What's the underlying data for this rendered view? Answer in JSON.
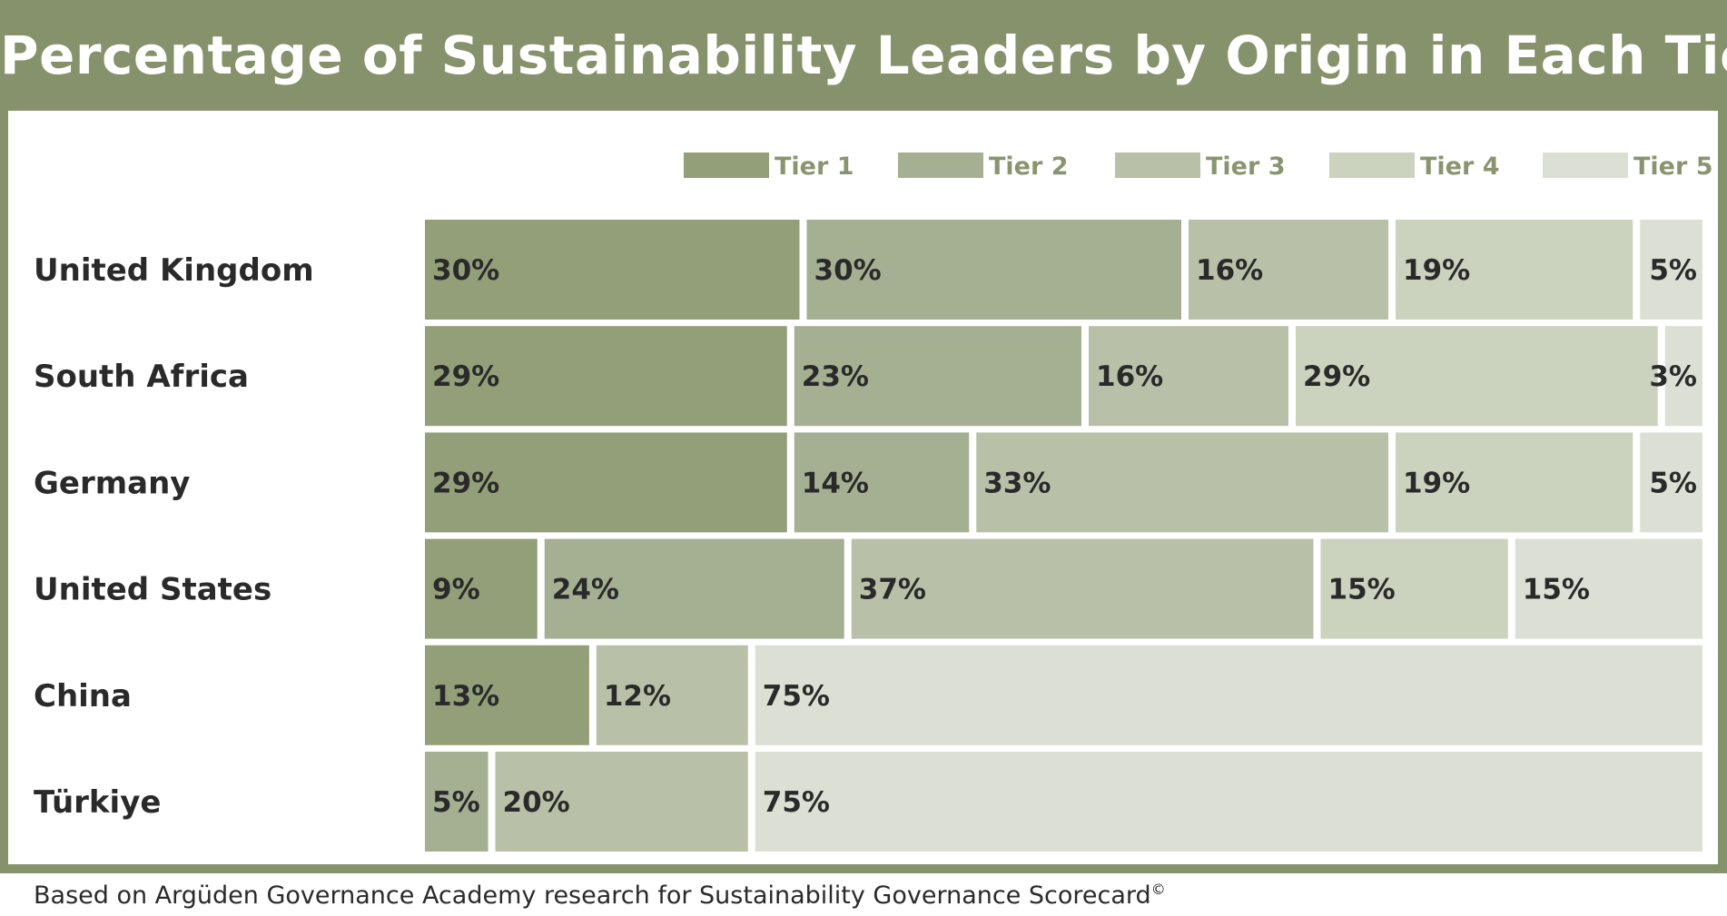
{
  "page": {
    "title": "Percentage of Sustainability Leaders by Origin in Each Tier",
    "footnote": "Based on Argüden Governance Academy research for Sustainability Governance Scorecard",
    "footnote_mark": "©"
  },
  "colors": {
    "frame": "#86926b",
    "tiers": [
      "#929f78",
      "#a5b092",
      "#b8c1a7",
      "#cbd2be",
      "#dce0d4"
    ],
    "text": "#2a2a2a",
    "legend_text": "#8a9570"
  },
  "chart_data": {
    "type": "bar",
    "orientation": "horizontal",
    "stacked": true,
    "normalized": true,
    "title": "Percentage of Sustainability Leaders by Origin in Each Tier",
    "categories": [
      "United Kingdom",
      "South Africa",
      "Germany",
      "United States",
      "China",
      "Türkiye"
    ],
    "xlim": [
      0,
      100
    ],
    "grid": false,
    "legend_position": "top-right",
    "series": [
      {
        "name": "Tier 1",
        "values": [
          30,
          29,
          29,
          9,
          13,
          0
        ],
        "labels": [
          "30%",
          "29%",
          "29%",
          "9%",
          "13%",
          ""
        ]
      },
      {
        "name": "Tier 2",
        "values": [
          30,
          23,
          14,
          24,
          0,
          5
        ],
        "labels": [
          "30%",
          "23%",
          "14%",
          "24%",
          "",
          "5%"
        ]
      },
      {
        "name": "Tier 3",
        "values": [
          16,
          16,
          33,
          37,
          12,
          20
        ],
        "labels": [
          "16%",
          "16%",
          "33%",
          "37%",
          "12%",
          "20%"
        ]
      },
      {
        "name": "Tier 4",
        "values": [
          19,
          29,
          19,
          15,
          0,
          0
        ],
        "labels": [
          "19%",
          "29%",
          "19%",
          "15%",
          "",
          ""
        ]
      },
      {
        "name": "Tier 5",
        "values": [
          5,
          3,
          5,
          15,
          75,
          75
        ],
        "labels": [
          "5%",
          "3%",
          "5%",
          "15%",
          "75%",
          "75%"
        ]
      }
    ]
  }
}
